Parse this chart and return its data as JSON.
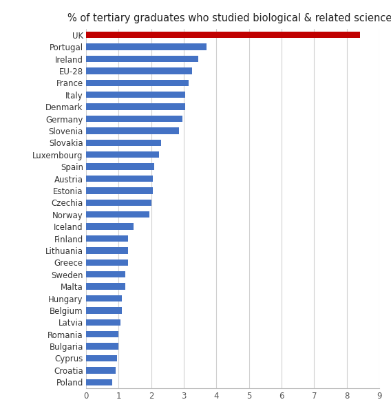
{
  "title": "% of tertiary graduates who studied biological & related sciences",
  "categories": [
    "Poland",
    "Croatia",
    "Cyprus",
    "Bulgaria",
    "Romania",
    "Latvia",
    "Belgium",
    "Hungary",
    "Malta",
    "Sweden",
    "Greece",
    "Lithuania",
    "Finland",
    "Iceland",
    "Norway",
    "Czechia",
    "Estonia",
    "Austria",
    "Spain",
    "Luxembourg",
    "Slovakia",
    "Slovenia",
    "Germany",
    "Denmark",
    "Italy",
    "France",
    "EU-28",
    "Ireland",
    "Portugal",
    "UK"
  ],
  "values": [
    0.8,
    0.9,
    0.95,
    1.0,
    1.0,
    1.05,
    1.1,
    1.1,
    1.2,
    1.2,
    1.3,
    1.3,
    1.3,
    1.45,
    1.95,
    2.0,
    2.05,
    2.05,
    2.1,
    2.25,
    2.3,
    2.85,
    2.95,
    3.05,
    3.05,
    3.15,
    3.25,
    3.45,
    3.7,
    8.4
  ],
  "bar_colors": [
    "#4472C4",
    "#4472C4",
    "#4472C4",
    "#4472C4",
    "#4472C4",
    "#4472C4",
    "#4472C4",
    "#4472C4",
    "#4472C4",
    "#4472C4",
    "#4472C4",
    "#4472C4",
    "#4472C4",
    "#4472C4",
    "#4472C4",
    "#4472C4",
    "#4472C4",
    "#4472C4",
    "#4472C4",
    "#4472C4",
    "#4472C4",
    "#4472C4",
    "#4472C4",
    "#4472C4",
    "#4472C4",
    "#4472C4",
    "#4472C4",
    "#4472C4",
    "#4472C4",
    "#C00000"
  ],
  "xlim": [
    0,
    9
  ],
  "xticks": [
    0,
    1,
    2,
    3,
    4,
    5,
    6,
    7,
    8,
    9
  ],
  "background_color": "#FFFFFF",
  "grid_color": "#D0D0D0",
  "bar_height": 0.55,
  "title_fontsize": 10.5,
  "label_fontsize": 8.5,
  "tick_fontsize": 8.5
}
